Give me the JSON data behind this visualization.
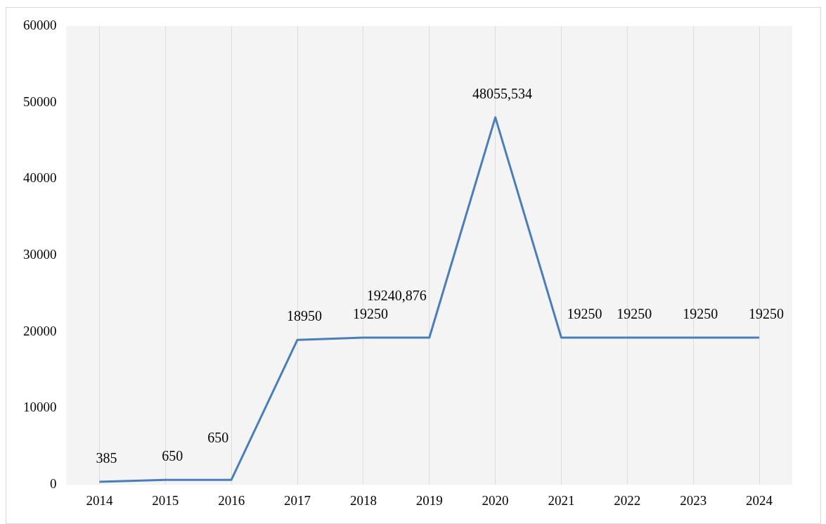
{
  "chart_data": {
    "type": "line",
    "categories": [
      "2014",
      "2015",
      "2016",
      "2017",
      "2018",
      "2019",
      "2020",
      "2021",
      "2022",
      "2023",
      "2024"
    ],
    "series": [
      {
        "color": "#4a7ebb",
        "values": [
          385,
          650,
          650,
          18950,
          19250,
          19240.876,
          48055.534,
          19250,
          19250,
          19250,
          19250
        ],
        "value_labels": [
          "385",
          "650",
          "650",
          "18950",
          "19250",
          "19240,876",
          "48055,534",
          "19250",
          "19250",
          "19250",
          "19250"
        ]
      }
    ],
    "ylim": [
      0,
      60000
    ],
    "yticks": [
      0,
      10000,
      20000,
      30000,
      40000,
      50000,
      60000
    ],
    "grid": "x",
    "legend": false,
    "marker": "none",
    "line_style": "solid"
  }
}
